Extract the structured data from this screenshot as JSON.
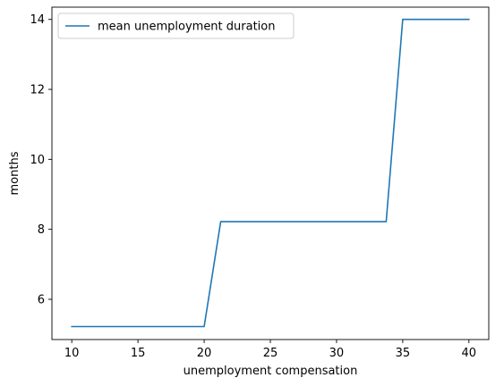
{
  "chart_data": {
    "type": "line",
    "title": "",
    "xlabel": "unemployment compensation",
    "ylabel": "months",
    "xlim": [
      8.5,
      41.5
    ],
    "ylim": [
      4.85,
      14.35
    ],
    "xticks": [
      10,
      15,
      20,
      25,
      30,
      35,
      40
    ],
    "yticks": [
      6,
      8,
      10,
      12,
      14
    ],
    "grid": false,
    "legend_position": "top-left",
    "series": [
      {
        "name": "mean unemployment duration",
        "color": "#1f77b4",
        "x": [
          10,
          20,
          21.25,
          33.75,
          35,
          40
        ],
        "y": [
          5.22,
          5.22,
          8.22,
          8.22,
          14.0,
          14.0
        ]
      }
    ]
  }
}
